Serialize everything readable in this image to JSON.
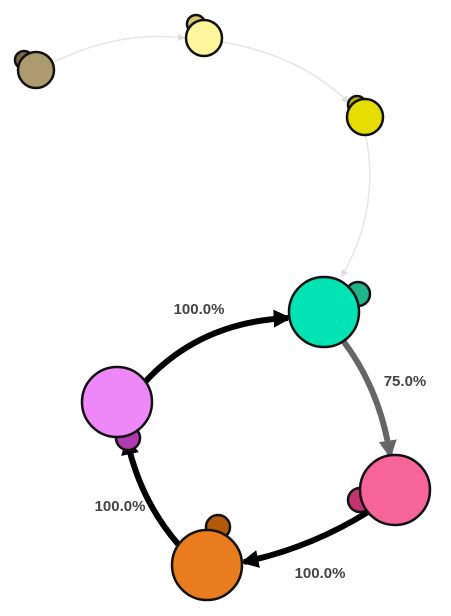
{
  "edges": [
    {
      "label": "100.0%"
    },
    {
      "label": "75.0%"
    },
    {
      "label": "100.0%"
    },
    {
      "label": "100.0%"
    }
  ]
}
